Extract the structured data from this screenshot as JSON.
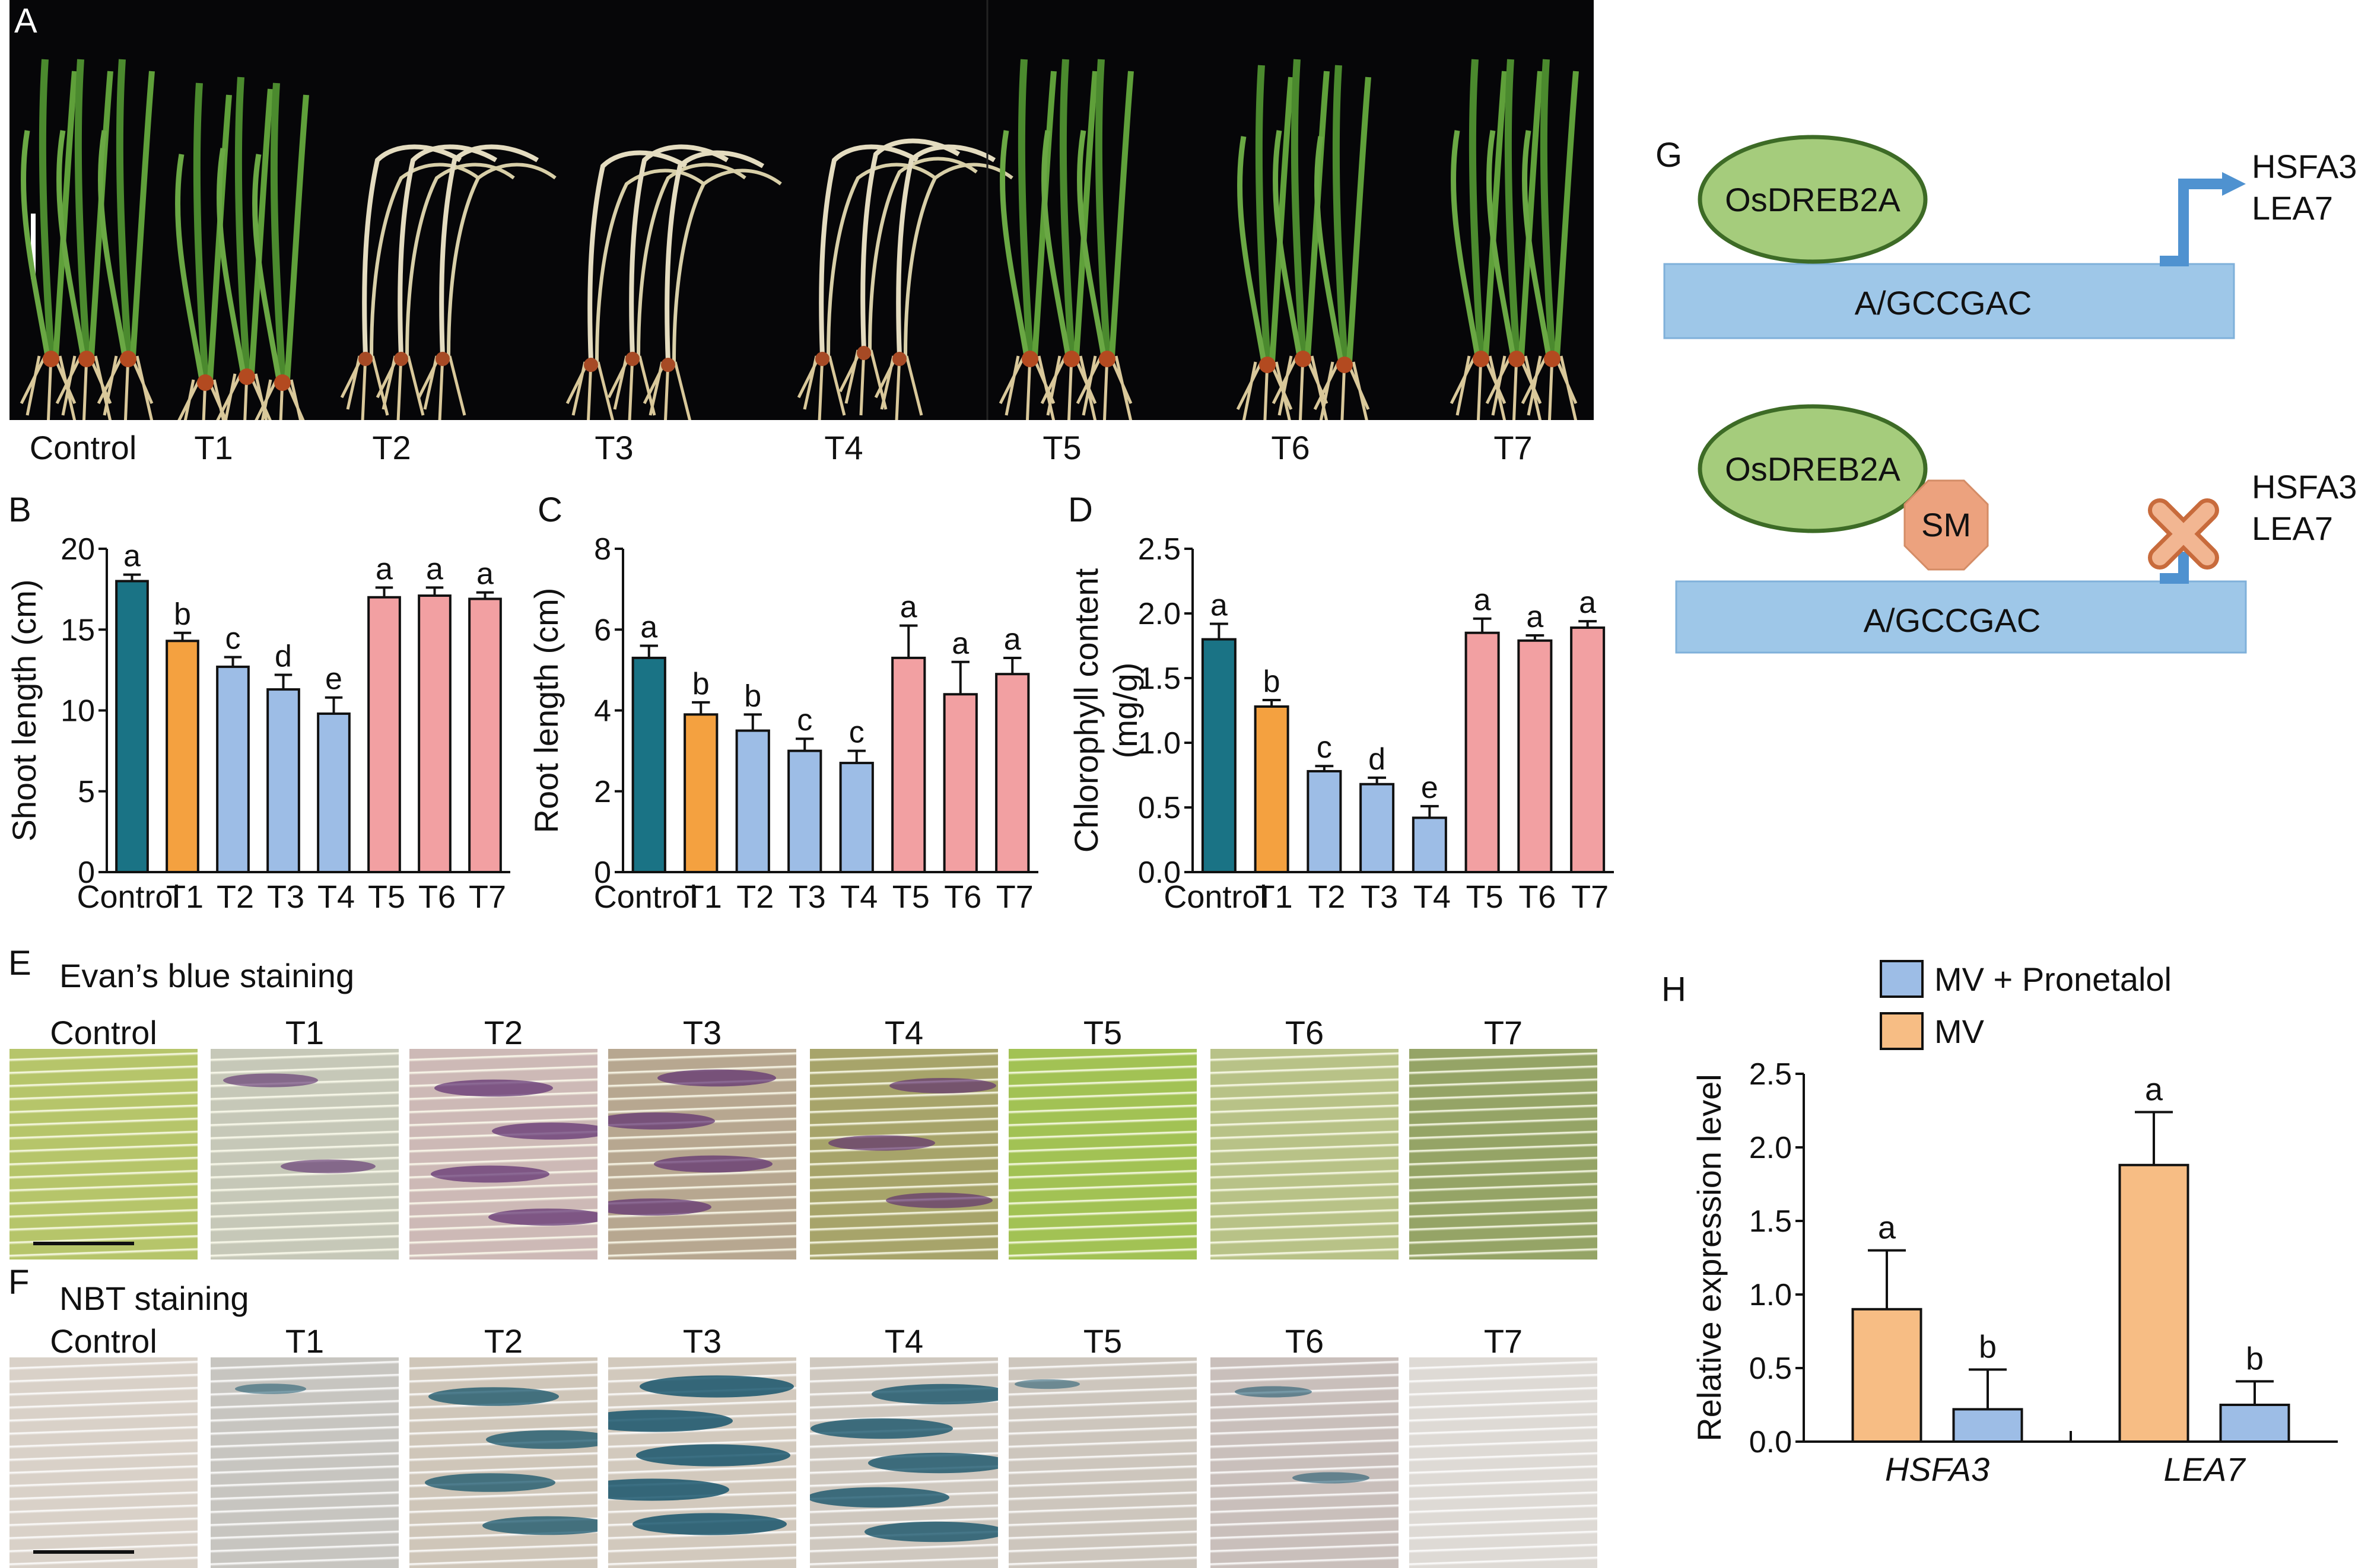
{
  "panels": {
    "A": "A",
    "B": "B",
    "C": "C",
    "D": "D",
    "E": "E",
    "F": "F",
    "G": "G",
    "H": "H"
  },
  "panel_a": {
    "labels": [
      "Control",
      "T1",
      "T2",
      "T3",
      "T4",
      "T5",
      "T6",
      "T7"
    ]
  },
  "panel_e": {
    "title": "Evan’s blue staining",
    "labels": [
      "Control",
      "T1",
      "T2",
      "T3",
      "T4",
      "T5",
      "T6",
      "T7"
    ]
  },
  "panel_f": {
    "title": "NBT staining",
    "labels": [
      "Control",
      "T1",
      "T2",
      "T3",
      "T4",
      "T5",
      "T6",
      "T7"
    ]
  },
  "panel_g": {
    "top": {
      "protein": "OsDREB2A",
      "motif": "A/GCCGAC",
      "gene1": "HSFA3",
      "gene2": "LEA7"
    },
    "bottom": {
      "protein": "OsDREB2A",
      "sm": "SM",
      "motif": "A/GCCGAC",
      "gene1": "HSFA3",
      "gene2": "LEA7"
    }
  },
  "colors": {
    "control": "#1a7385",
    "orange": "#f4a140",
    "blue": "#9dbde6",
    "pink": "#f2a0a2",
    "h_orange": "#f7bd84",
    "h_blue": "#9dbde6",
    "dna": "#9ec7e8",
    "ellipse": "#a5cc7c",
    "sm": "#eca27e"
  },
  "chart_data": [
    {
      "id": "B",
      "type": "bar",
      "ylabel": "Shoot length (cm)",
      "categories": [
        "Control",
        "T1",
        "T2",
        "T3",
        "T4",
        "T5",
        "T6",
        "T7"
      ],
      "values": [
        18.0,
        14.3,
        12.7,
        11.3,
        9.8,
        17.0,
        17.1,
        16.9
      ],
      "errors": [
        0.4,
        0.5,
        0.6,
        0.9,
        1.0,
        0.6,
        0.5,
        0.4
      ],
      "letters": [
        "a",
        "b",
        "c",
        "d",
        "e",
        "a",
        "a",
        "a"
      ],
      "ylim": [
        0,
        20
      ],
      "yticks": [
        0,
        5,
        10,
        15,
        20
      ]
    },
    {
      "id": "C",
      "type": "bar",
      "ylabel": "Root length (cm)",
      "categories": [
        "Control",
        "T1",
        "T2",
        "T3",
        "T4",
        "T5",
        "T6",
        "T7"
      ],
      "values": [
        5.3,
        3.9,
        3.5,
        3.0,
        2.7,
        5.3,
        4.4,
        4.9
      ],
      "errors": [
        0.3,
        0.3,
        0.4,
        0.3,
        0.3,
        0.8,
        0.8,
        0.4
      ],
      "letters": [
        "a",
        "b",
        "b",
        "c",
        "c",
        "a",
        "a",
        "a"
      ],
      "ylim": [
        0,
        8
      ],
      "yticks": [
        0,
        2,
        4,
        6,
        8
      ]
    },
    {
      "id": "D",
      "type": "bar",
      "ylabel": "Chlorophyll content (mg/g)",
      "categories": [
        "Control",
        "T1",
        "T2",
        "T3",
        "T4",
        "T5",
        "T6",
        "T7"
      ],
      "values": [
        1.8,
        1.28,
        0.78,
        0.68,
        0.42,
        1.85,
        1.79,
        1.89
      ],
      "errors": [
        0.12,
        0.05,
        0.04,
        0.05,
        0.09,
        0.11,
        0.04,
        0.05
      ],
      "letters": [
        "a",
        "b",
        "c",
        "d",
        "e",
        "a",
        "a",
        "a"
      ],
      "ylim": [
        0,
        2.5
      ],
      "yticks": [
        "0.0",
        "0.5",
        "1.0",
        "1.5",
        "2.0",
        "2.5"
      ]
    },
    {
      "id": "H",
      "type": "bar",
      "ylabel": "Relative expression level",
      "categories": [
        "HSFA3",
        "LEA7"
      ],
      "series": [
        {
          "name": "MV",
          "values": [
            0.9,
            1.88
          ],
          "errors": [
            0.4,
            0.36
          ],
          "letters": [
            "a",
            "a"
          ]
        },
        {
          "name": "MV + Pronetalol",
          "values": [
            0.22,
            0.25
          ],
          "errors": [
            0.27,
            0.16
          ],
          "letters": [
            "b",
            "b"
          ]
        }
      ],
      "ylim": [
        0,
        2.5
      ],
      "yticks": [
        "0.0",
        "0.5",
        "1.0",
        "1.5",
        "2.0",
        "2.5"
      ],
      "legend": "top"
    }
  ]
}
